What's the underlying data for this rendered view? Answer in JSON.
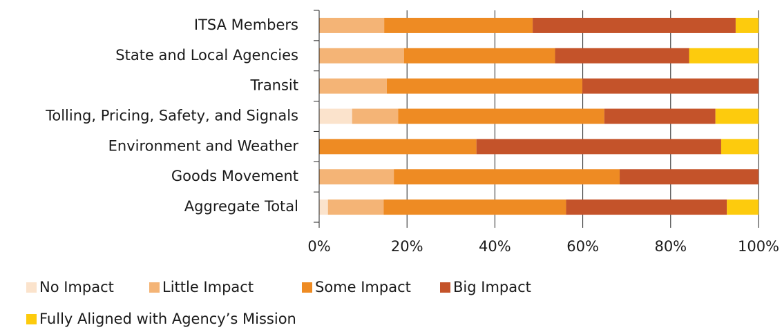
{
  "chart_data": {
    "type": "stacked-bar-horizontal",
    "categories": [
      "ITSA Members",
      "State and Local Agencies",
      "Transit",
      "Tolling, Pricing, Safety, and Signals",
      "Environment and Weather",
      "Goods Movement",
      "Aggregate Total"
    ],
    "series": [
      {
        "name": "No Impact",
        "color": "#fbe3cc",
        "values": [
          0,
          0,
          0,
          7.5,
          0,
          0,
          2.0
        ]
      },
      {
        "name": "Little Impact",
        "color": "#f4b476",
        "values": [
          14.8,
          19.3,
          15.4,
          10.5,
          0,
          17.0,
          12.7
        ]
      },
      {
        "name": "Some Impact",
        "color": "#ee8b23",
        "values": [
          33.8,
          34.4,
          44.5,
          46.9,
          35.8,
          51.4,
          41.5
        ]
      },
      {
        "name": "Big Impact",
        "color": "#c4532a",
        "values": [
          46.2,
          30.5,
          40.1,
          25.3,
          55.7,
          31.6,
          36.6
        ]
      },
      {
        "name": "Fully Aligned with Agency’s Mission",
        "color": "#fdcb0d",
        "values": [
          5.2,
          15.8,
          0,
          9.8,
          8.5,
          0,
          7.2
        ]
      }
    ],
    "xlim": [
      0,
      100
    ],
    "xticks": [
      {
        "value": 0,
        "label": "0%"
      },
      {
        "value": 20,
        "label": "20%"
      },
      {
        "value": 40,
        "label": "40%"
      },
      {
        "value": 60,
        "label": "60%"
      },
      {
        "value": 80,
        "label": "80%"
      },
      {
        "value": 100,
        "label": "100%"
      }
    ],
    "grid": true
  }
}
